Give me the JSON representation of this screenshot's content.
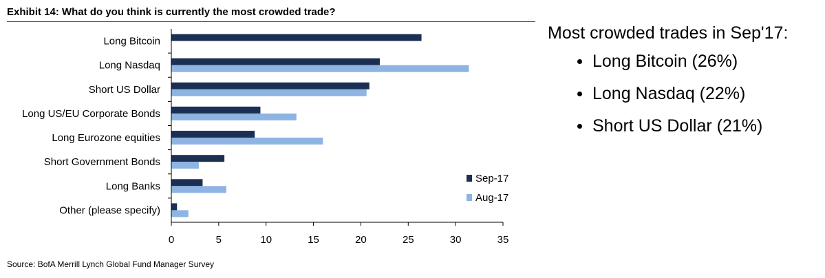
{
  "header": {
    "title": "Exhibit 14: What do you think is currently the most crowded trade?"
  },
  "source": "Source: BofA Merrill Lynch Global Fund Manager Survey",
  "summary": {
    "heading": "Most crowded trades in Sep'17:",
    "items": [
      "Long Bitcoin (26%)",
      "Long Nasdaq (22%)",
      "Short US Dollar (21%)"
    ]
  },
  "chart_data": {
    "type": "bar",
    "orientation": "horizontal",
    "categories": [
      "Long Bitcoin",
      "Long Nasdaq",
      "Short US Dollar",
      "Long US/EU Corporate Bonds",
      "Long Eurozone equities",
      "Short Government Bonds",
      "Long Banks",
      "Other (please specify)"
    ],
    "series": [
      {
        "name": "Sep-17",
        "color": "#1b2f52",
        "values": [
          26.4,
          22.0,
          20.9,
          9.4,
          8.8,
          5.6,
          3.3,
          0.6
        ]
      },
      {
        "name": "Aug-17",
        "color": "#8db4e2",
        "values": [
          0,
          31.4,
          20.6,
          13.2,
          16.0,
          2.9,
          5.8,
          1.8
        ]
      }
    ],
    "xlim": [
      0,
      35
    ],
    "xticks": [
      "0",
      "5",
      "10",
      "15",
      "20",
      "25",
      "30",
      "35"
    ],
    "xlabel": "",
    "ylabel": "",
    "grid": false,
    "legend_position": "bottom-right"
  }
}
